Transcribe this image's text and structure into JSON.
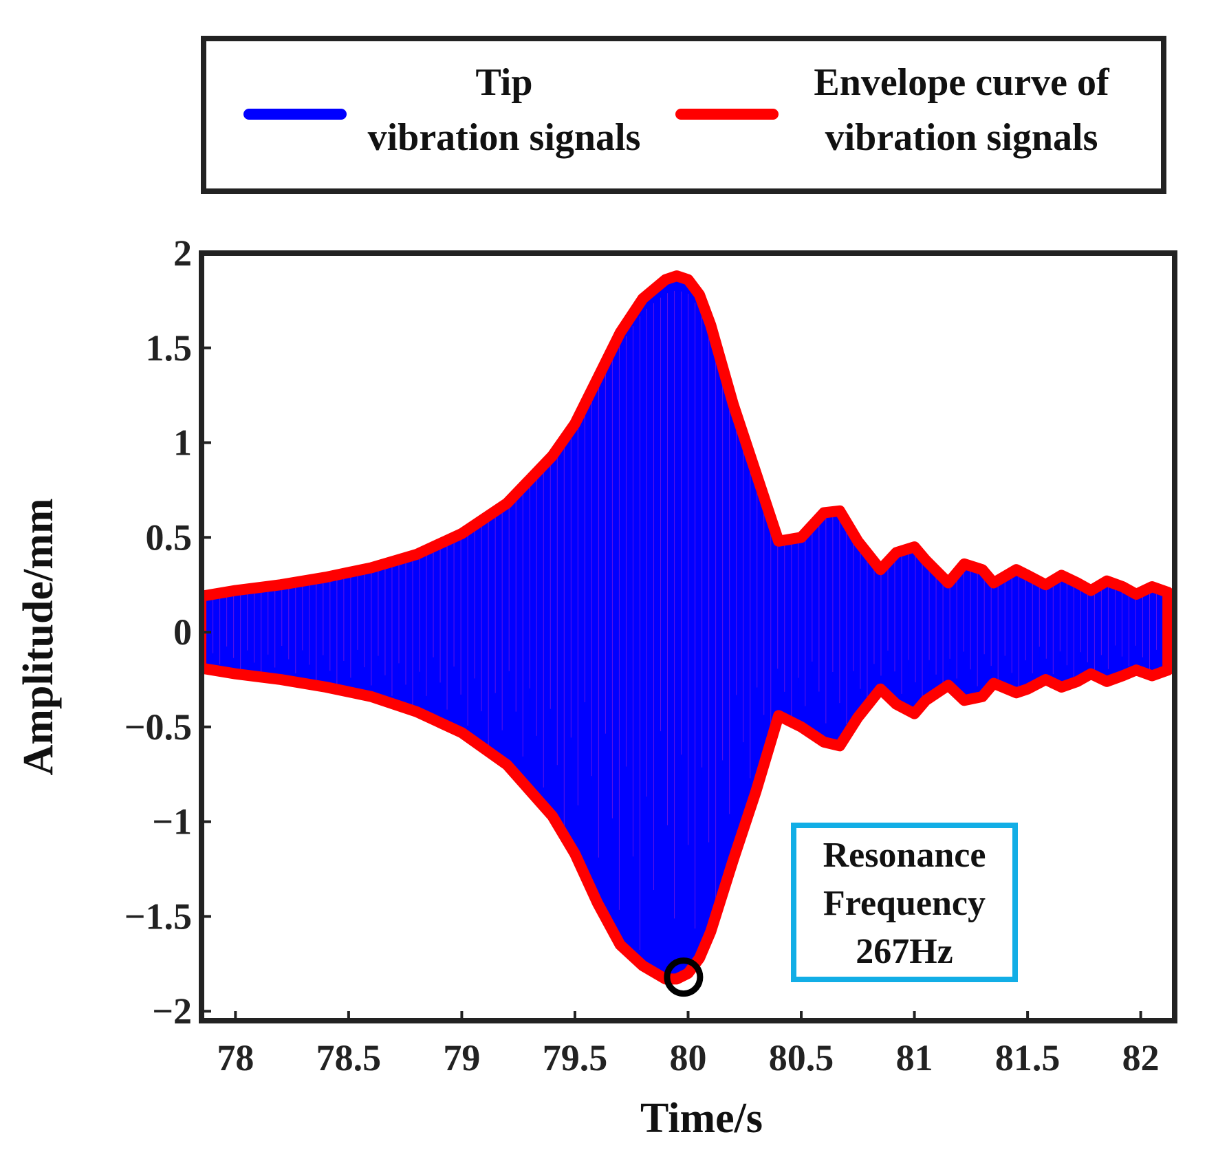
{
  "chart_data": {
    "type": "line",
    "title": "",
    "xlabel": "Time/s",
    "ylabel": "Amplitude/mm",
    "xlim": [
      77.85,
      82.15
    ],
    "ylim": [
      -2.05,
      2.0
    ],
    "x_ticks": [
      78,
      78.5,
      79,
      79.5,
      80,
      80.5,
      81,
      81.5,
      82
    ],
    "x_tick_labels": [
      "78",
      "78.5",
      "79",
      "79.5",
      "80",
      "80.5",
      "81",
      "81.5",
      "82"
    ],
    "y_ticks": [
      2,
      1.5,
      1,
      0.5,
      0,
      -0.5,
      -1,
      -1.5,
      -2
    ],
    "y_tick_labels": [
      "2",
      "1.5",
      "1",
      "0.5",
      "0",
      "−0.5",
      "−1",
      "−1.5",
      "−2"
    ],
    "grid": false,
    "legend_position": "top",
    "series": [
      {
        "name": "Tip vibration signals",
        "legend_lines": [
          "Tip",
          "vibration signals"
        ],
        "color": "#0000ff",
        "style": "dense oscillation filling the envelope",
        "periods_per_second": 120
      },
      {
        "name": "Envelope curve of vibration signals",
        "legend_lines": [
          "Envelope curve of",
          "vibration signals"
        ],
        "color": "#ff0000",
        "upper_x": [
          77.85,
          78.0,
          78.2,
          78.4,
          78.6,
          78.8,
          79.0,
          79.2,
          79.4,
          79.5,
          79.6,
          79.7,
          79.8,
          79.9,
          79.95,
          80.0,
          80.05,
          80.1,
          80.2,
          80.3,
          80.4,
          80.5,
          80.6,
          80.67,
          80.75,
          80.85,
          80.92,
          81.0,
          81.05,
          81.15,
          81.22,
          81.3,
          81.35,
          81.45,
          81.5,
          81.58,
          81.65,
          81.72,
          81.78,
          81.85,
          81.92,
          81.98,
          82.05,
          82.12
        ],
        "upper_y": [
          0.19,
          0.22,
          0.25,
          0.29,
          0.34,
          0.41,
          0.52,
          0.68,
          0.93,
          1.1,
          1.34,
          1.58,
          1.76,
          1.86,
          1.88,
          1.86,
          1.78,
          1.62,
          1.2,
          0.84,
          0.48,
          0.5,
          0.63,
          0.64,
          0.48,
          0.33,
          0.42,
          0.45,
          0.38,
          0.26,
          0.36,
          0.33,
          0.26,
          0.33,
          0.3,
          0.25,
          0.3,
          0.26,
          0.22,
          0.27,
          0.24,
          0.2,
          0.24,
          0.21
        ],
        "lower_x": [
          77.85,
          78.0,
          78.2,
          78.4,
          78.6,
          78.8,
          79.0,
          79.2,
          79.4,
          79.5,
          79.6,
          79.7,
          79.8,
          79.9,
          79.95,
          80.0,
          80.05,
          80.1,
          80.2,
          80.3,
          80.4,
          80.5,
          80.6,
          80.67,
          80.75,
          80.85,
          80.92,
          81.0,
          81.05,
          81.15,
          81.22,
          81.3,
          81.35,
          81.45,
          81.5,
          81.58,
          81.65,
          81.72,
          81.78,
          81.85,
          81.92,
          81.98,
          82.05,
          82.12
        ],
        "lower_y": [
          -0.19,
          -0.22,
          -0.25,
          -0.29,
          -0.34,
          -0.42,
          -0.53,
          -0.7,
          -0.97,
          -1.17,
          -1.43,
          -1.65,
          -1.76,
          -1.83,
          -1.83,
          -1.8,
          -1.72,
          -1.58,
          -1.2,
          -0.84,
          -0.44,
          -0.5,
          -0.58,
          -0.6,
          -0.45,
          -0.3,
          -0.38,
          -0.43,
          -0.36,
          -0.28,
          -0.36,
          -0.34,
          -0.27,
          -0.32,
          -0.3,
          -0.25,
          -0.29,
          -0.26,
          -0.22,
          -0.26,
          -0.23,
          -0.2,
          -0.23,
          -0.2
        ]
      }
    ],
    "annotations": [
      {
        "type": "marker",
        "shape": "circle",
        "x": 79.98,
        "y": -1.82,
        "color": "#000000"
      },
      {
        "type": "textbox",
        "lines": [
          "Resonance",
          "Frequency",
          "267Hz"
        ],
        "border_color": "#12aee6"
      }
    ]
  }
}
